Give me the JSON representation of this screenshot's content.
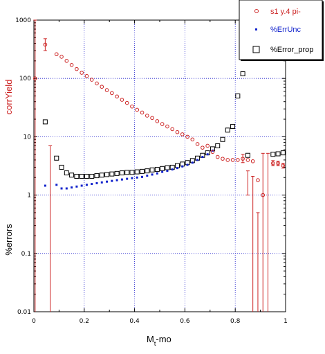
{
  "chart_data": {
    "type": "scatter",
    "title": "",
    "xlabel": "M",
    "xlabel_sub": "t",
    "xlabel_rest": "-mo",
    "ylabel_top": "corrYield",
    "ylabel_bottom": "%errors",
    "xlim": [
      0,
      1
    ],
    "ylim": [
      0.01,
      1000
    ],
    "yscale": "log",
    "grid": true,
    "legend_position": "top-right",
    "x_ticks": [
      "0",
      "0.2",
      "0.4",
      "0.6",
      "0.8",
      "1"
    ],
    "x_tick_values": [
      0,
      0.2,
      0.4,
      0.6,
      0.8,
      1
    ],
    "y_ticks": [
      "0.01",
      "0.1",
      "1",
      "10",
      "100",
      "1000"
    ],
    "y_tick_values": [
      0.01,
      0.1,
      1,
      10,
      100,
      1000
    ],
    "colors": {
      "yield": "#cc2222",
      "errunc": "#1122cc",
      "errprop": "#000000",
      "grid": "#1a1acc"
    },
    "series": [
      {
        "name": "s1 y.4 pi-",
        "marker": "circle",
        "color": "#cc2222",
        "x": [
          0.005,
          0.045,
          0.065,
          0.09,
          0.11,
          0.13,
          0.15,
          0.17,
          0.19,
          0.21,
          0.23,
          0.25,
          0.27,
          0.29,
          0.31,
          0.33,
          0.35,
          0.37,
          0.39,
          0.41,
          0.43,
          0.45,
          0.47,
          0.49,
          0.51,
          0.53,
          0.55,
          0.57,
          0.59,
          0.61,
          0.63,
          0.65,
          0.67,
          0.69,
          0.71,
          0.73,
          0.75,
          0.77,
          0.79,
          0.81,
          0.83,
          0.85,
          0.87,
          0.89,
          0.91,
          0.93,
          0.95,
          0.97,
          0.99
        ],
        "y": [
          100,
          380,
          0.01,
          260,
          235,
          200,
          170,
          145,
          125,
          110,
          95,
          82,
          72,
          63,
          56,
          49,
          43,
          38,
          33,
          29,
          26,
          23,
          21,
          18.5,
          16.5,
          15,
          13.5,
          12,
          11,
          10,
          9,
          7.5,
          6.5,
          7,
          5.5,
          4.5,
          4.2,
          4.0,
          4.0,
          4.0,
          4.2,
          4.0,
          3.8,
          1.8,
          1.0,
          0.01,
          3.5,
          3.5,
          3.2
        ],
        "err_lo": [
          0.01,
          300,
          0.01,
          null,
          null,
          null,
          null,
          null,
          null,
          null,
          null,
          null,
          null,
          null,
          null,
          null,
          null,
          null,
          null,
          null,
          null,
          null,
          null,
          null,
          null,
          null,
          null,
          null,
          null,
          null,
          null,
          null,
          null,
          null,
          null,
          null,
          null,
          null,
          null,
          null,
          3.6,
          1.0,
          0.01,
          0.01,
          0.01,
          0.01,
          3.2,
          3.2,
          2.9
        ],
        "err_hi": [
          1000,
          480,
          7,
          null,
          null,
          null,
          null,
          null,
          null,
          null,
          null,
          null,
          null,
          null,
          null,
          null,
          null,
          null,
          null,
          null,
          null,
          null,
          null,
          null,
          null,
          null,
          null,
          null,
          null,
          null,
          null,
          null,
          null,
          null,
          null,
          null,
          null,
          null,
          null,
          null,
          5.0,
          2.6,
          2.1,
          0.5,
          5.2,
          5.2,
          3.9,
          3.8,
          3.5
        ]
      },
      {
        "name": "%ErrUnc",
        "marker": "small-square",
        "color": "#1122cc",
        "x": [
          0.045,
          0.09,
          0.11,
          0.13,
          0.15,
          0.17,
          0.19,
          0.21,
          0.23,
          0.25,
          0.27,
          0.29,
          0.31,
          0.33,
          0.35,
          0.37,
          0.39,
          0.41,
          0.43,
          0.45,
          0.47,
          0.49,
          0.51,
          0.53,
          0.55,
          0.57,
          0.59,
          0.61,
          0.63,
          0.65,
          0.67,
          0.69,
          0.71
        ],
        "y": [
          1.45,
          1.5,
          1.3,
          1.3,
          1.35,
          1.4,
          1.45,
          1.5,
          1.55,
          1.6,
          1.65,
          1.7,
          1.75,
          1.8,
          1.85,
          1.9,
          1.95,
          2.0,
          2.05,
          2.15,
          2.25,
          2.35,
          2.5,
          2.6,
          2.75,
          2.9,
          3.1,
          3.3,
          3.6,
          4.0,
          4.5,
          5.0,
          5.8
        ]
      },
      {
        "name": "%Error_prop",
        "marker": "open-square",
        "color": "#000000",
        "x": [
          0.045,
          0.09,
          0.11,
          0.13,
          0.15,
          0.17,
          0.19,
          0.21,
          0.23,
          0.25,
          0.27,
          0.29,
          0.31,
          0.33,
          0.35,
          0.37,
          0.39,
          0.41,
          0.43,
          0.45,
          0.47,
          0.49,
          0.51,
          0.53,
          0.55,
          0.57,
          0.59,
          0.61,
          0.63,
          0.65,
          0.67,
          0.69,
          0.71,
          0.73,
          0.75,
          0.77,
          0.79,
          0.81,
          0.83,
          0.85,
          0.95,
          0.97,
          0.99
        ],
        "y": [
          18,
          4.3,
          3.0,
          2.4,
          2.2,
          2.1,
          2.1,
          2.1,
          2.1,
          2.15,
          2.2,
          2.25,
          2.3,
          2.35,
          2.4,
          2.45,
          2.45,
          2.5,
          2.55,
          2.6,
          2.7,
          2.75,
          2.85,
          2.95,
          3.0,
          3.2,
          3.4,
          3.6,
          3.9,
          4.3,
          4.8,
          5.3,
          6.2,
          7.0,
          9.0,
          13,
          15,
          50,
          120,
          4.8,
          5.0,
          5.1,
          5.3
        ]
      }
    ]
  }
}
